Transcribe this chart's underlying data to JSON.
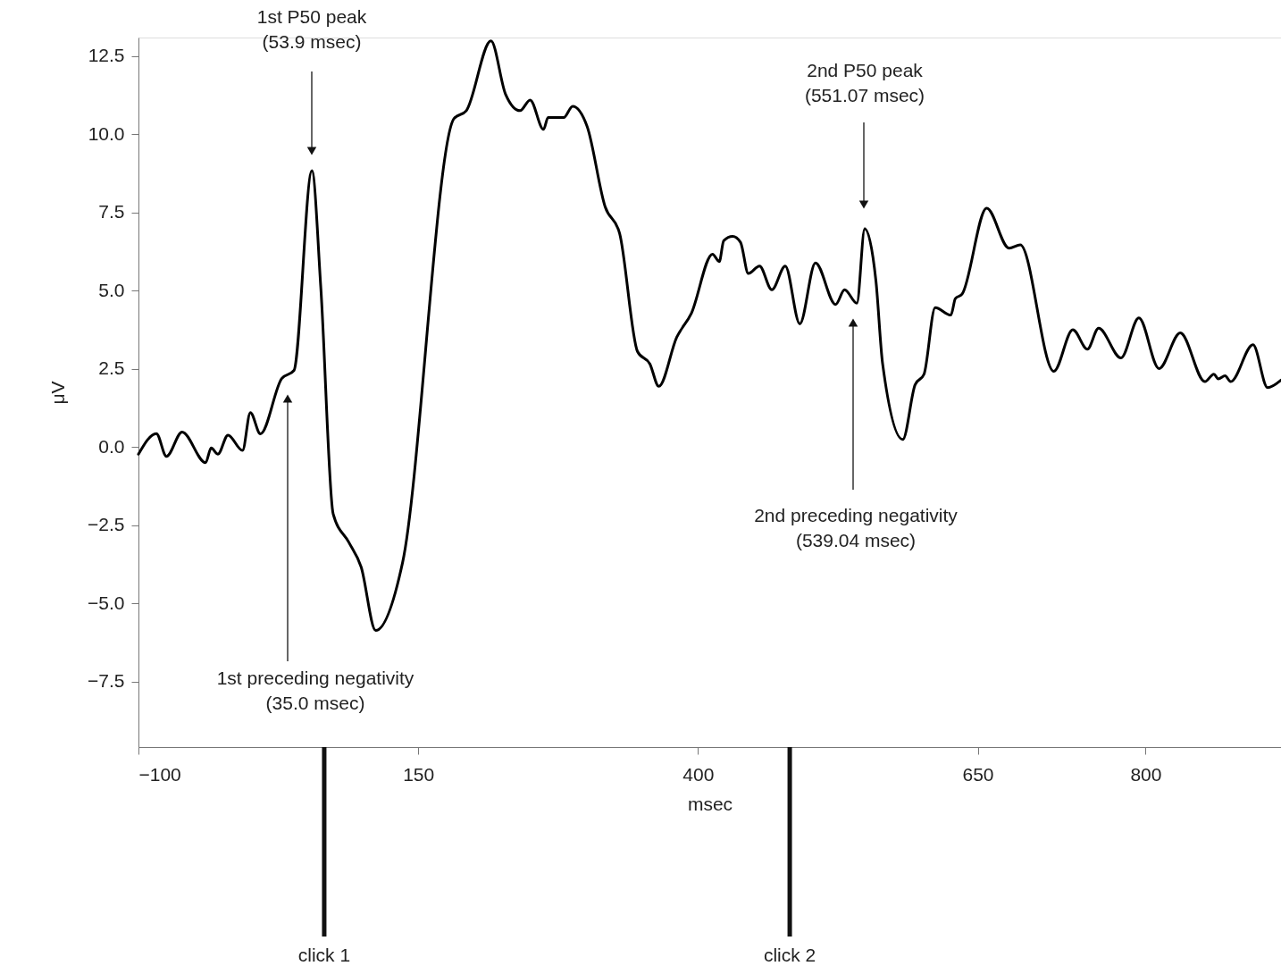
{
  "chart_data": {
    "type": "line",
    "xlabel": "msec",
    "ylabel": "μV",
    "x": [
      -100,
      -84,
      -75,
      -61,
      -40,
      -35,
      -29,
      -20,
      -7,
      0,
      9,
      28,
      39,
      55,
      63,
      74,
      88,
      99,
      112,
      136,
      182,
      193,
      215,
      228,
      241,
      250,
      262,
      266,
      280,
      288,
      301,
      317,
      330,
      346,
      357,
      365,
      381,
      394,
      413,
      419,
      423,
      431,
      438,
      445,
      455,
      466,
      478,
      491,
      505,
      523,
      531,
      542,
      549,
      559,
      565,
      583,
      594,
      602,
      612,
      626,
      630,
      636,
      658,
      678,
      688,
      718,
      735,
      748,
      758,
      778,
      794,
      812,
      831,
      853,
      861,
      865,
      871,
      876,
      896,
      909,
      921
    ],
    "series": [
      {
        "color": "#000000",
        "values": [
          -0.23,
          0.43,
          -0.3,
          0.48,
          -0.5,
          -0.03,
          -0.23,
          0.38,
          -0.11,
          1.1,
          0.42,
          2.19,
          2.45,
          8.84,
          5.07,
          -2.14,
          -3.05,
          -3.84,
          -5.87,
          -3.7,
          10.51,
          10.76,
          12.99,
          11.29,
          10.76,
          11.1,
          10.16,
          10.54,
          10.54,
          10.9,
          10.25,
          7.69,
          6.83,
          3.05,
          2.66,
          1.94,
          3.51,
          4.27,
          6.17,
          5.93,
          6.6,
          6.74,
          6.55,
          5.55,
          5.79,
          5.03,
          5.79,
          3.94,
          5.89,
          4.56,
          5.03,
          4.6,
          6.98,
          5.32,
          2.66,
          0.24,
          1.99,
          2.33,
          4.46,
          4.22,
          4.75,
          4.89,
          7.64,
          6.36,
          6.47,
          2.42,
          3.75,
          3.13,
          3.8,
          2.85,
          4.13,
          2.51,
          3.65,
          2.09,
          2.33,
          2.18,
          2.28,
          2.09,
          3.27,
          1.9,
          2.14
        ]
      }
    ],
    "xlim": [
      -100,
      921
    ],
    "ylim": [
      -9.6,
      13.1
    ],
    "xticks": [
      {
        "value": -100,
        "label": "−100"
      },
      150,
      400,
      650,
      800
    ],
    "yticks": [
      {
        "value": -7.5,
        "label": "−7.5"
      },
      {
        "value": -5,
        "label": "−5.0"
      },
      {
        "value": -2.5,
        "label": "−2.5"
      },
      {
        "value": 0,
        "label": "0.0"
      },
      2.5,
      {
        "value": 5,
        "label": "5.0"
      },
      7.5,
      {
        "value": 10,
        "label": "10.0"
      },
      12.5
    ],
    "grid": false,
    "annotations": [
      "1st P50 peak\n(53.9 msec)",
      "1st preceding negativity\n(35.0 msec)",
      "2nd P50 peak\n(551.07 msec)",
      "2nd preceding negativity\n(539.04 msec)"
    ],
    "ref_lines": [
      {
        "axis": "x",
        "value": 66,
        "label": "click 1",
        "color": "#111111"
      },
      {
        "axis": "x",
        "value": 482,
        "label": "click 2",
        "color": "#111111"
      }
    ]
  }
}
